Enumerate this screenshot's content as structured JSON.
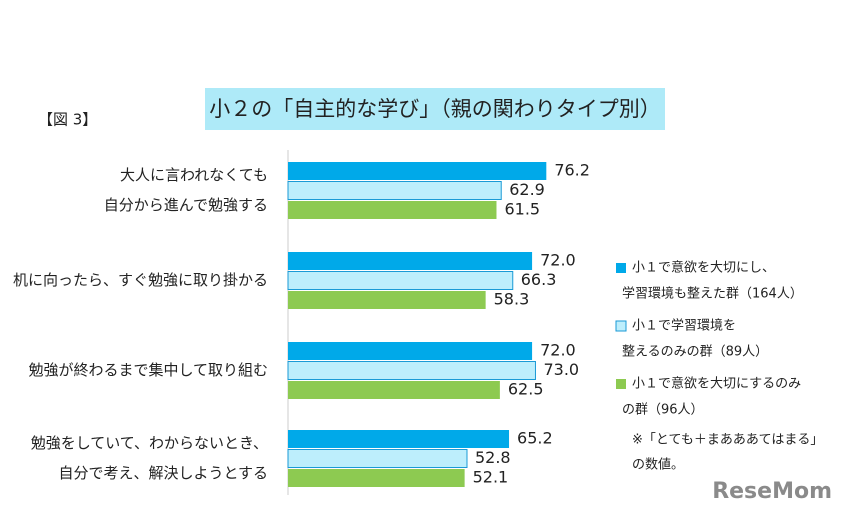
{
  "chart_data": {
    "type": "bar",
    "orientation": "horizontal",
    "title": "小２の「自主的な学び」（親の関わりタイプ別）",
    "figure_label": "【図 3】",
    "categories": [
      [
        "大人に言われなくても",
        "自分から進んで勉強する"
      ],
      [
        "机に向ったら、すぐ勉強に取り掛かる"
      ],
      [
        "勉強が終わるまで集中して取り組む"
      ],
      [
        "勉強をしていて、わからないとき、",
        "自分で考え、解決しようとする"
      ]
    ],
    "series": [
      {
        "name": [
          "小１で意欲を大切にし、",
          "学習環境も整えた群（164人）"
        ],
        "color": "#00a9e9",
        "values": [
          76.2,
          72.0,
          72.0,
          65.2
        ],
        "value_labels": [
          "76.2",
          "72.0",
          "72.0",
          "65.2"
        ]
      },
      {
        "name": [
          "小１で学習環境を",
          "整えるのみの群（89人）"
        ],
        "color": "#bdeefc",
        "border": "#1a9ad6",
        "values": [
          62.9,
          66.3,
          73.0,
          52.8
        ],
        "value_labels": [
          "62.9",
          "66.3",
          "73.0",
          "52.8"
        ]
      },
      {
        "name": [
          "小１で意欲を大切にするのみ",
          "の群（96人）"
        ],
        "color": "#8dca51",
        "values": [
          61.5,
          58.3,
          62.5,
          52.1
        ],
        "value_labels": [
          "61.5",
          "58.3",
          "62.5",
          "52.1"
        ]
      }
    ],
    "note": [
      "※「とても＋まあああてはまる」",
      "の数値。"
    ],
    "watermark": "ReseMom"
  }
}
